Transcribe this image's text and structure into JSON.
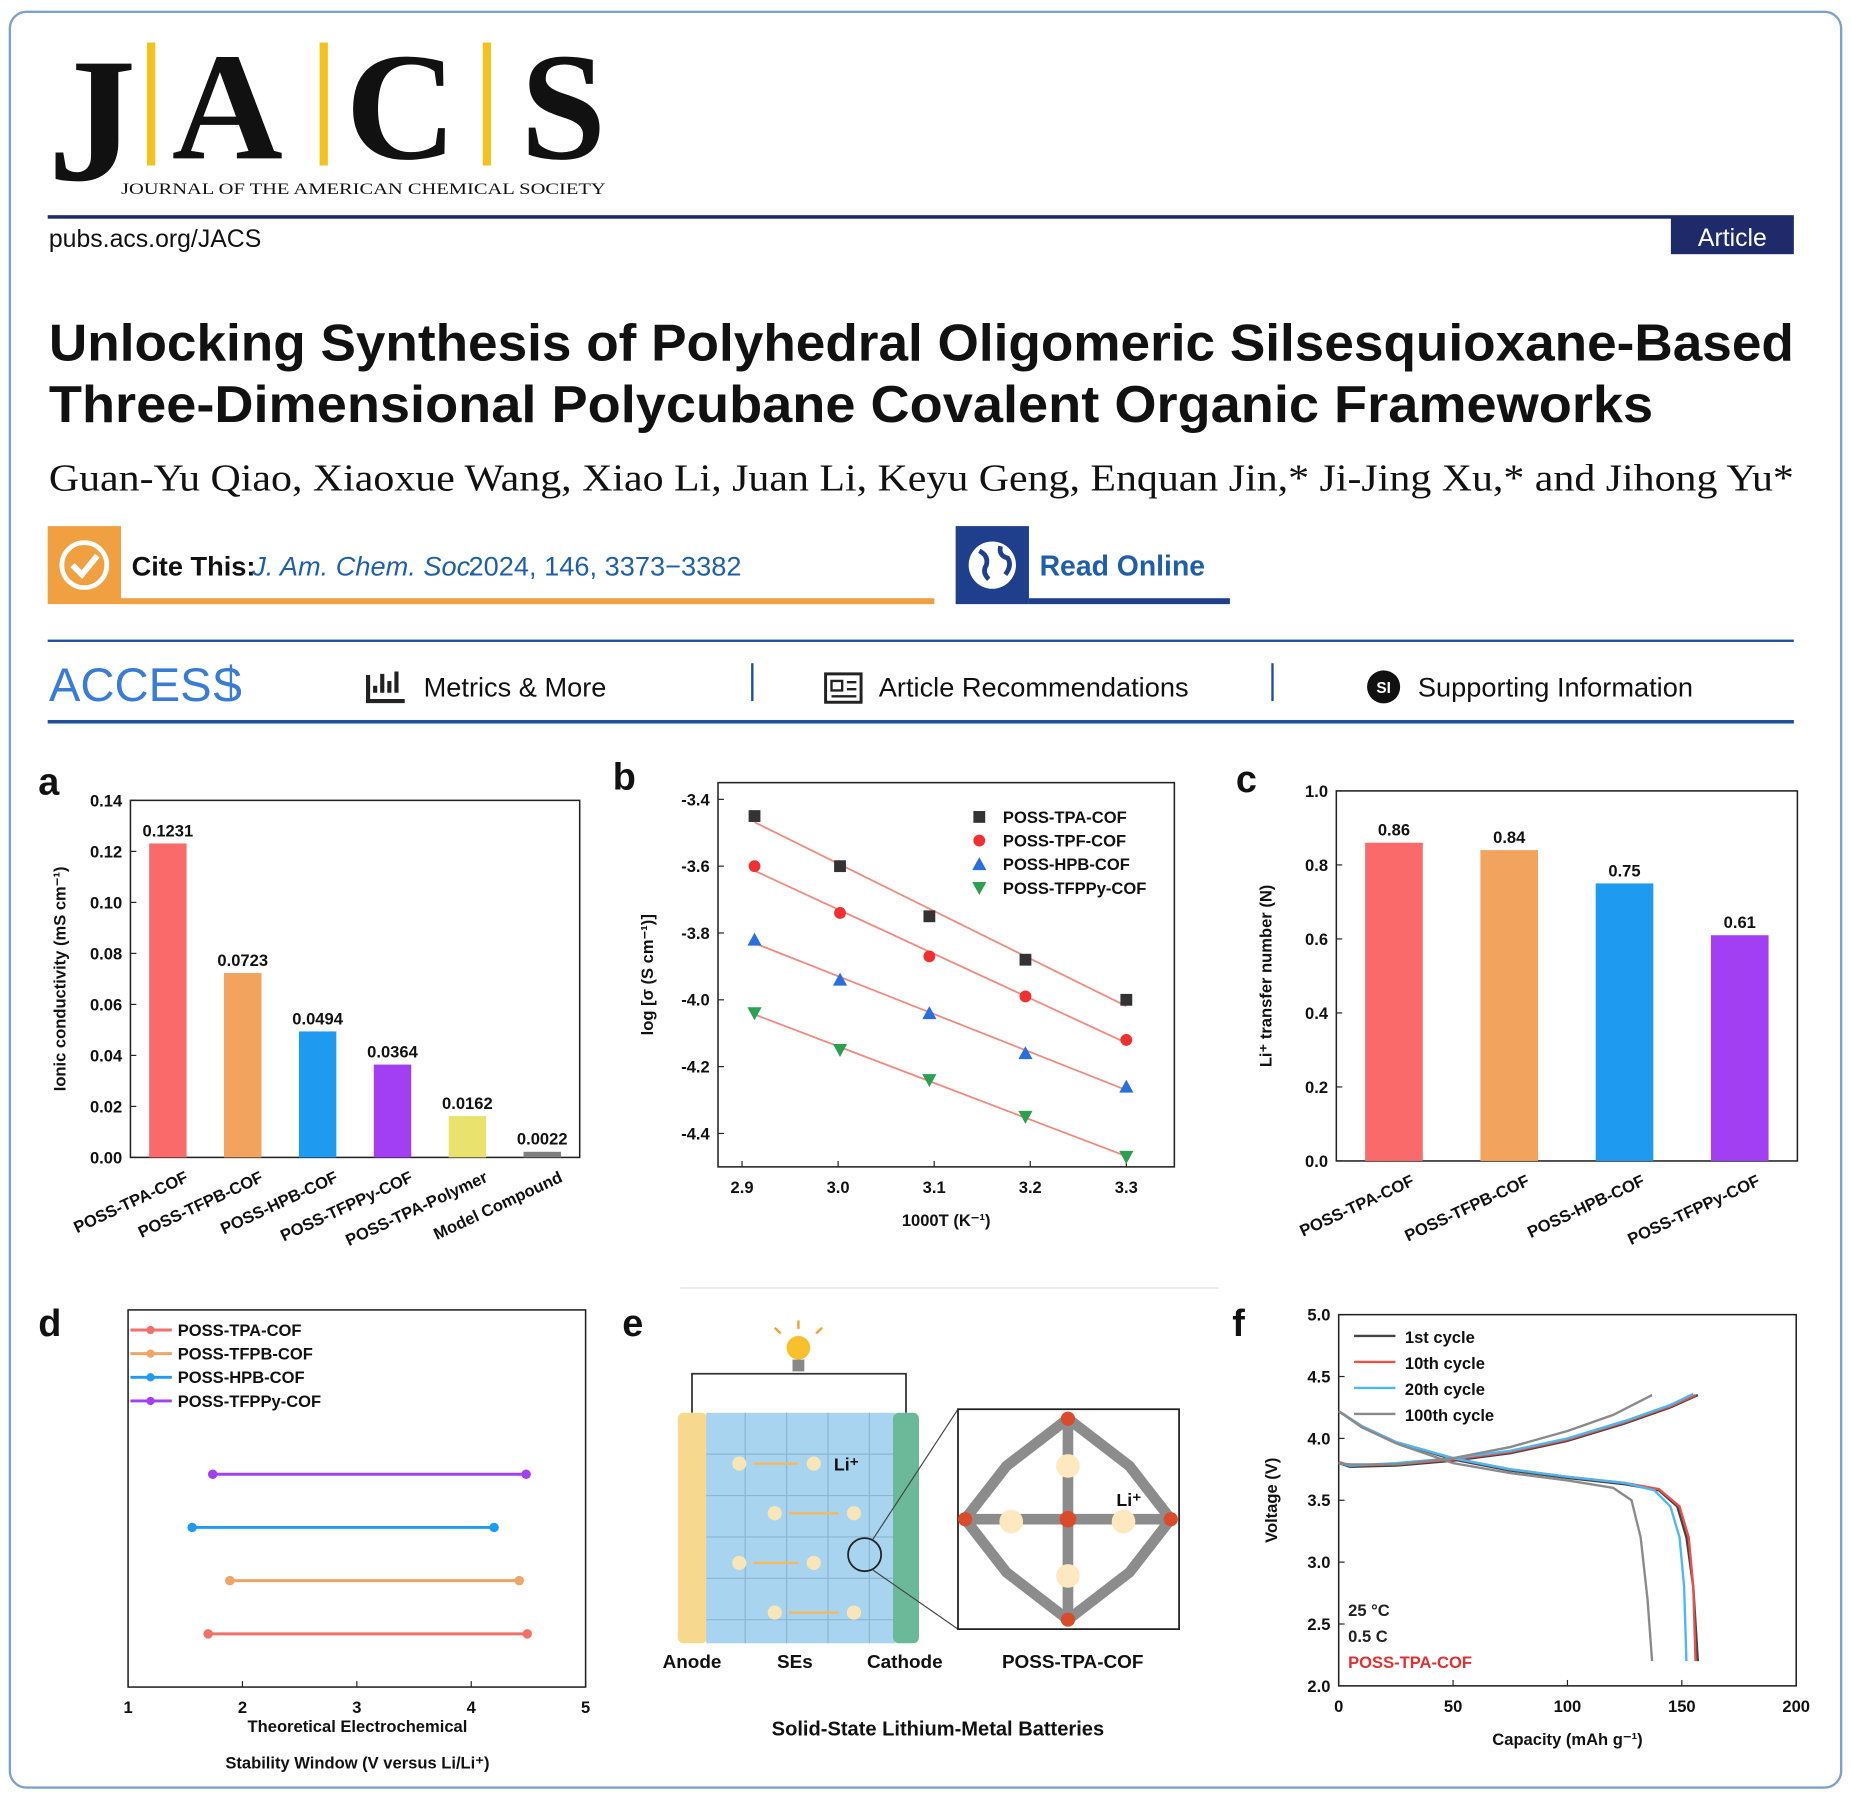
{
  "header": {
    "journal_letters": [
      "J",
      "A",
      "C",
      "S"
    ],
    "journal_name": "JOURNAL OF THE AMERICAN CHEMICAL SOCIETY",
    "url": "pubs.acs.org/JACS",
    "article_type": "Article"
  },
  "article": {
    "title_lines": [
      "Unlocking Synthesis of Polyhedral Oligomeric Silsesquioxane-Based",
      "Three-Dimensional Polycubane Covalent Organic Frameworks"
    ],
    "authors": "Guan-Yu Qiao, Xiaoxue Wang, Xiao Li, Juan Li, Keyu Geng, Enquan Jin,* Ji-Jing Xu,* and Jihong Yu*",
    "cite_label": "Cite This:",
    "journal_abbrev": "J. Am. Chem. Soc.",
    "citation": "2024, 146, 3373−3382",
    "read_online": "Read Online",
    "access": "ACCESS",
    "tabs": [
      "Metrics & More",
      "Article Recommendations",
      "Supporting Information"
    ],
    "si_icon": "SI"
  },
  "chart_data": [
    {
      "panel": "a",
      "type": "bar",
      "ylabel": "Ionic conductivity (mS cm⁻¹)",
      "categories": [
        "POSS-TPA-COF",
        "POSS-TFPB-COF",
        "POSS-HPB-COF",
        "POSS-TFPPy-COF",
        "POSS-TPA-Polymer",
        "Model Compound"
      ],
      "values": [
        0.1231,
        0.0723,
        0.0494,
        0.0364,
        0.0162,
        0.0022
      ],
      "colors": [
        "#fa6a6a",
        "#f2a35e",
        "#1e9bf0",
        "#a33ff2",
        "#e9e36d",
        "#7f7f7f"
      ],
      "ylim": [
        0,
        0.14
      ],
      "yticks": [
        {
          "value": 0,
          "label": "0.00"
        },
        0.02,
        0.04,
        0.06,
        0.08,
        {
          "value": 0.1,
          "label": "0.10"
        },
        0.12,
        0.14
      ],
      "data_labels": true
    },
    {
      "panel": "b",
      "type": "scatter",
      "xlabel": "1000T (K⁻¹)",
      "ylabel": "log [σ (S cm⁻¹)]",
      "x": [
        2.913,
        3.002,
        3.095,
        3.195,
        3.3
      ],
      "series": [
        {
          "name": "POSS-TPA-COF",
          "color": "#333333",
          "marker": "square",
          "values": [
            -3.45,
            -3.6,
            -3.75,
            -3.88,
            -4.0
          ]
        },
        {
          "name": "POSS-TPF-COF",
          "color": "#f03030",
          "marker": "circle",
          "values": [
            -3.6,
            -3.74,
            -3.87,
            -3.99,
            -4.12
          ]
        },
        {
          "name": "POSS-HPB-COF",
          "color": "#2a6fe0",
          "marker": "triangle-up",
          "values": [
            -3.82,
            -3.94,
            -4.04,
            -4.16,
            -4.26
          ]
        },
        {
          "name": "POSS-TFPPy-COF",
          "color": "#2aa050",
          "marker": "triangle-down",
          "values": [
            -4.04,
            -4.15,
            -4.24,
            -4.35,
            -4.47
          ]
        }
      ],
      "xlim": [
        2.875,
        3.35
      ],
      "ylim": [
        -4.5,
        -3.35
      ],
      "xticks": [
        2.9,
        {
          "value": 3,
          "label": "3.0"
        },
        3.1,
        3.2,
        3.3
      ],
      "yticks": [
        -3.4,
        -3.6,
        -3.8,
        {
          "value": -4,
          "label": "-4.0"
        },
        -4.2,
        -4.4
      ],
      "fit_lines": true,
      "fit_color": "#f08a80"
    },
    {
      "panel": "c",
      "type": "bar",
      "ylabel": "Li⁺ transfer number (N)",
      "categories": [
        "POSS-TPA-COF",
        "POSS-TFPB-COF",
        "POSS-HPB-COF",
        "POSS-TFPPy-COF"
      ],
      "values": [
        0.86,
        0.84,
        0.75,
        0.61
      ],
      "colors": [
        "#fa6a6a",
        "#f2a35e",
        "#1e9bf0",
        "#a33ff2"
      ],
      "ylim": [
        0,
        1
      ],
      "yticks": [
        {
          "value": 0,
          "label": "0.0"
        },
        0.2,
        0.4,
        0.6,
        0.8,
        {
          "value": 1,
          "label": "1.0"
        }
      ],
      "data_labels": true
    },
    {
      "panel": "d",
      "type": "range",
      "xlabel": [
        "Theoretical Electrochemical",
        "Stability Window (V versus Li/Li⁺)"
      ],
      "series": [
        {
          "name": "POSS-TPA-COF",
          "color": "#f0706a",
          "values": [
            1.7,
            4.49
          ]
        },
        {
          "name": "POSS-TFPB-COF",
          "color": "#eea565",
          "values": [
            1.89,
            4.42
          ]
        },
        {
          "name": "POSS-HPB-COF",
          "color": "#1e9bf0",
          "values": [
            1.56,
            4.2
          ]
        },
        {
          "name": "POSS-TFPPy-COF",
          "color": "#a33ff2",
          "values": [
            1.74,
            4.48
          ]
        }
      ],
      "xlim": [
        1,
        5
      ],
      "xticks": [
        1,
        2,
        3,
        4,
        5
      ]
    },
    {
      "panel": "f",
      "type": "line",
      "xlabel": "Capacity (mAh g⁻¹)",
      "ylabel": "Voltage (V)",
      "series": [
        {
          "name": "1st cycle",
          "color": "#444444",
          "x": [
            0,
            10,
            25,
            50,
            75,
            100,
            125,
            140,
            148,
            152,
            155,
            157,
            null,
            0,
            5,
            25,
            50,
            75,
            100,
            125,
            145,
            157
          ],
          "values": [
            4.22,
            4.1,
            3.97,
            3.83,
            3.74,
            3.68,
            3.63,
            3.58,
            3.45,
            3.2,
            2.8,
            2.2,
            null,
            3.8,
            3.77,
            3.78,
            3.82,
            3.88,
            3.98,
            4.12,
            4.25,
            4.35
          ]
        },
        {
          "name": "10th cycle",
          "color": "#e8524a",
          "x": [
            0,
            10,
            25,
            50,
            75,
            100,
            125,
            140,
            149,
            153,
            155,
            156,
            null,
            0,
            5,
            25,
            50,
            75,
            100,
            125,
            145,
            156
          ],
          "values": [
            4.22,
            4.1,
            3.97,
            3.84,
            3.75,
            3.69,
            3.64,
            3.59,
            3.45,
            3.2,
            2.8,
            2.2,
            null,
            3.81,
            3.78,
            3.79,
            3.83,
            3.89,
            3.99,
            4.13,
            4.26,
            4.35
          ]
        },
        {
          "name": "20th cycle",
          "color": "#4db8f0",
          "x": [
            0,
            10,
            25,
            50,
            75,
            100,
            125,
            138,
            145,
            149,
            151,
            152,
            null,
            0,
            5,
            25,
            50,
            75,
            100,
            125,
            145,
            155
          ],
          "values": [
            4.22,
            4.1,
            3.97,
            3.84,
            3.75,
            3.69,
            3.64,
            3.58,
            3.45,
            3.2,
            2.8,
            2.2,
            null,
            3.8,
            3.78,
            3.8,
            3.84,
            3.9,
            4.0,
            4.14,
            4.27,
            4.36
          ]
        },
        {
          "name": "100th cycle",
          "color": "#8a8a8a",
          "x": [
            0,
            10,
            25,
            50,
            75,
            100,
            120,
            128,
            132,
            135,
            137,
            null,
            0,
            5,
            25,
            50,
            75,
            100,
            120,
            137
          ],
          "values": [
            4.22,
            4.09,
            3.96,
            3.8,
            3.72,
            3.66,
            3.6,
            3.5,
            3.2,
            2.7,
            2.2,
            null,
            3.8,
            3.79,
            3.79,
            3.84,
            3.93,
            4.06,
            4.19,
            4.35
          ]
        }
      ],
      "xlim": [
        0,
        200
      ],
      "ylim": [
        2,
        5
      ],
      "xticks": [
        0,
        50,
        100,
        150,
        200
      ],
      "yticks": [
        {
          "value": 2,
          "label": "2.0"
        },
        2.5,
        {
          "value": 3,
          "label": "3.0"
        },
        3.5,
        {
          "value": 4,
          "label": "4.0"
        },
        4.5,
        {
          "value": 5,
          "label": "5.0"
        }
      ],
      "annotations": [
        "25 °C",
        "0.5 C",
        "POSS-TPA-COF"
      ],
      "annotation_colors": [
        "#222222",
        "#222222",
        "#e03030"
      ]
    }
  ],
  "figure_e": {
    "panel": "e",
    "li_labels": [
      "Li⁺",
      "Li⁺"
    ],
    "labels": [
      "Anode",
      "SEs",
      "Cathode",
      "POSS-TPA-COF"
    ],
    "caption": "Solid-State Lithium-Metal Batteries"
  }
}
